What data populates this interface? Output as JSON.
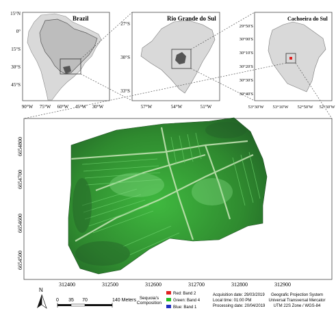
{
  "inset_brazil": {
    "title": "Brazil",
    "lat_ticks": [
      "15°N",
      "0°",
      "15°S",
      "30°S",
      "45°S"
    ],
    "lon_ticks": [
      "90°W",
      "75°W",
      "60°W",
      "45°W",
      "30°W"
    ]
  },
  "inset_rs": {
    "title": "Rio Grande do Sul",
    "lat_ticks": [
      "27°S",
      "30°S",
      "33°S"
    ],
    "lon_ticks": [
      "57°W",
      "54°W",
      "51°W"
    ]
  },
  "inset_cachoeira": {
    "title": "Cachoeira do Sul",
    "lat_ticks": [
      "29°50'S",
      "30°00'S",
      "30°10'S",
      "30°20'S",
      "30°30'S",
      "30°40'S"
    ],
    "lon_ticks": [
      "53°30'W",
      "53°10'W",
      "52°50'W",
      "52°30'W"
    ]
  },
  "main_map": {
    "northing_ticks": [
      "6654800",
      "6654700",
      "6654600",
      "6654500"
    ],
    "easting_ticks": [
      "312400",
      "312500",
      "312600",
      "312700",
      "312800",
      "312900"
    ]
  },
  "legend": {
    "north_label": "N",
    "scale_ticks": [
      "0",
      "35",
      "70",
      "140 Meters"
    ],
    "composite_label_1": "Sequoia's",
    "composite_label_2": "Composition",
    "bands": [
      {
        "label": "Red: Band 2",
        "color": "#e02020"
      },
      {
        "label": "Green: Band 4",
        "color": "#22c022"
      },
      {
        "label": "Blue: Band 1",
        "color": "#2030c0"
      }
    ],
    "dates": [
      "Acquisition date: 29/03/2019",
      "Local time: 01:00 PM",
      "Processing date: 20/04/2019"
    ],
    "projection": [
      "Geografic Projection System",
      "Universal Transversal Mercator",
      "UTM 22S Zone / WGS-84"
    ]
  }
}
